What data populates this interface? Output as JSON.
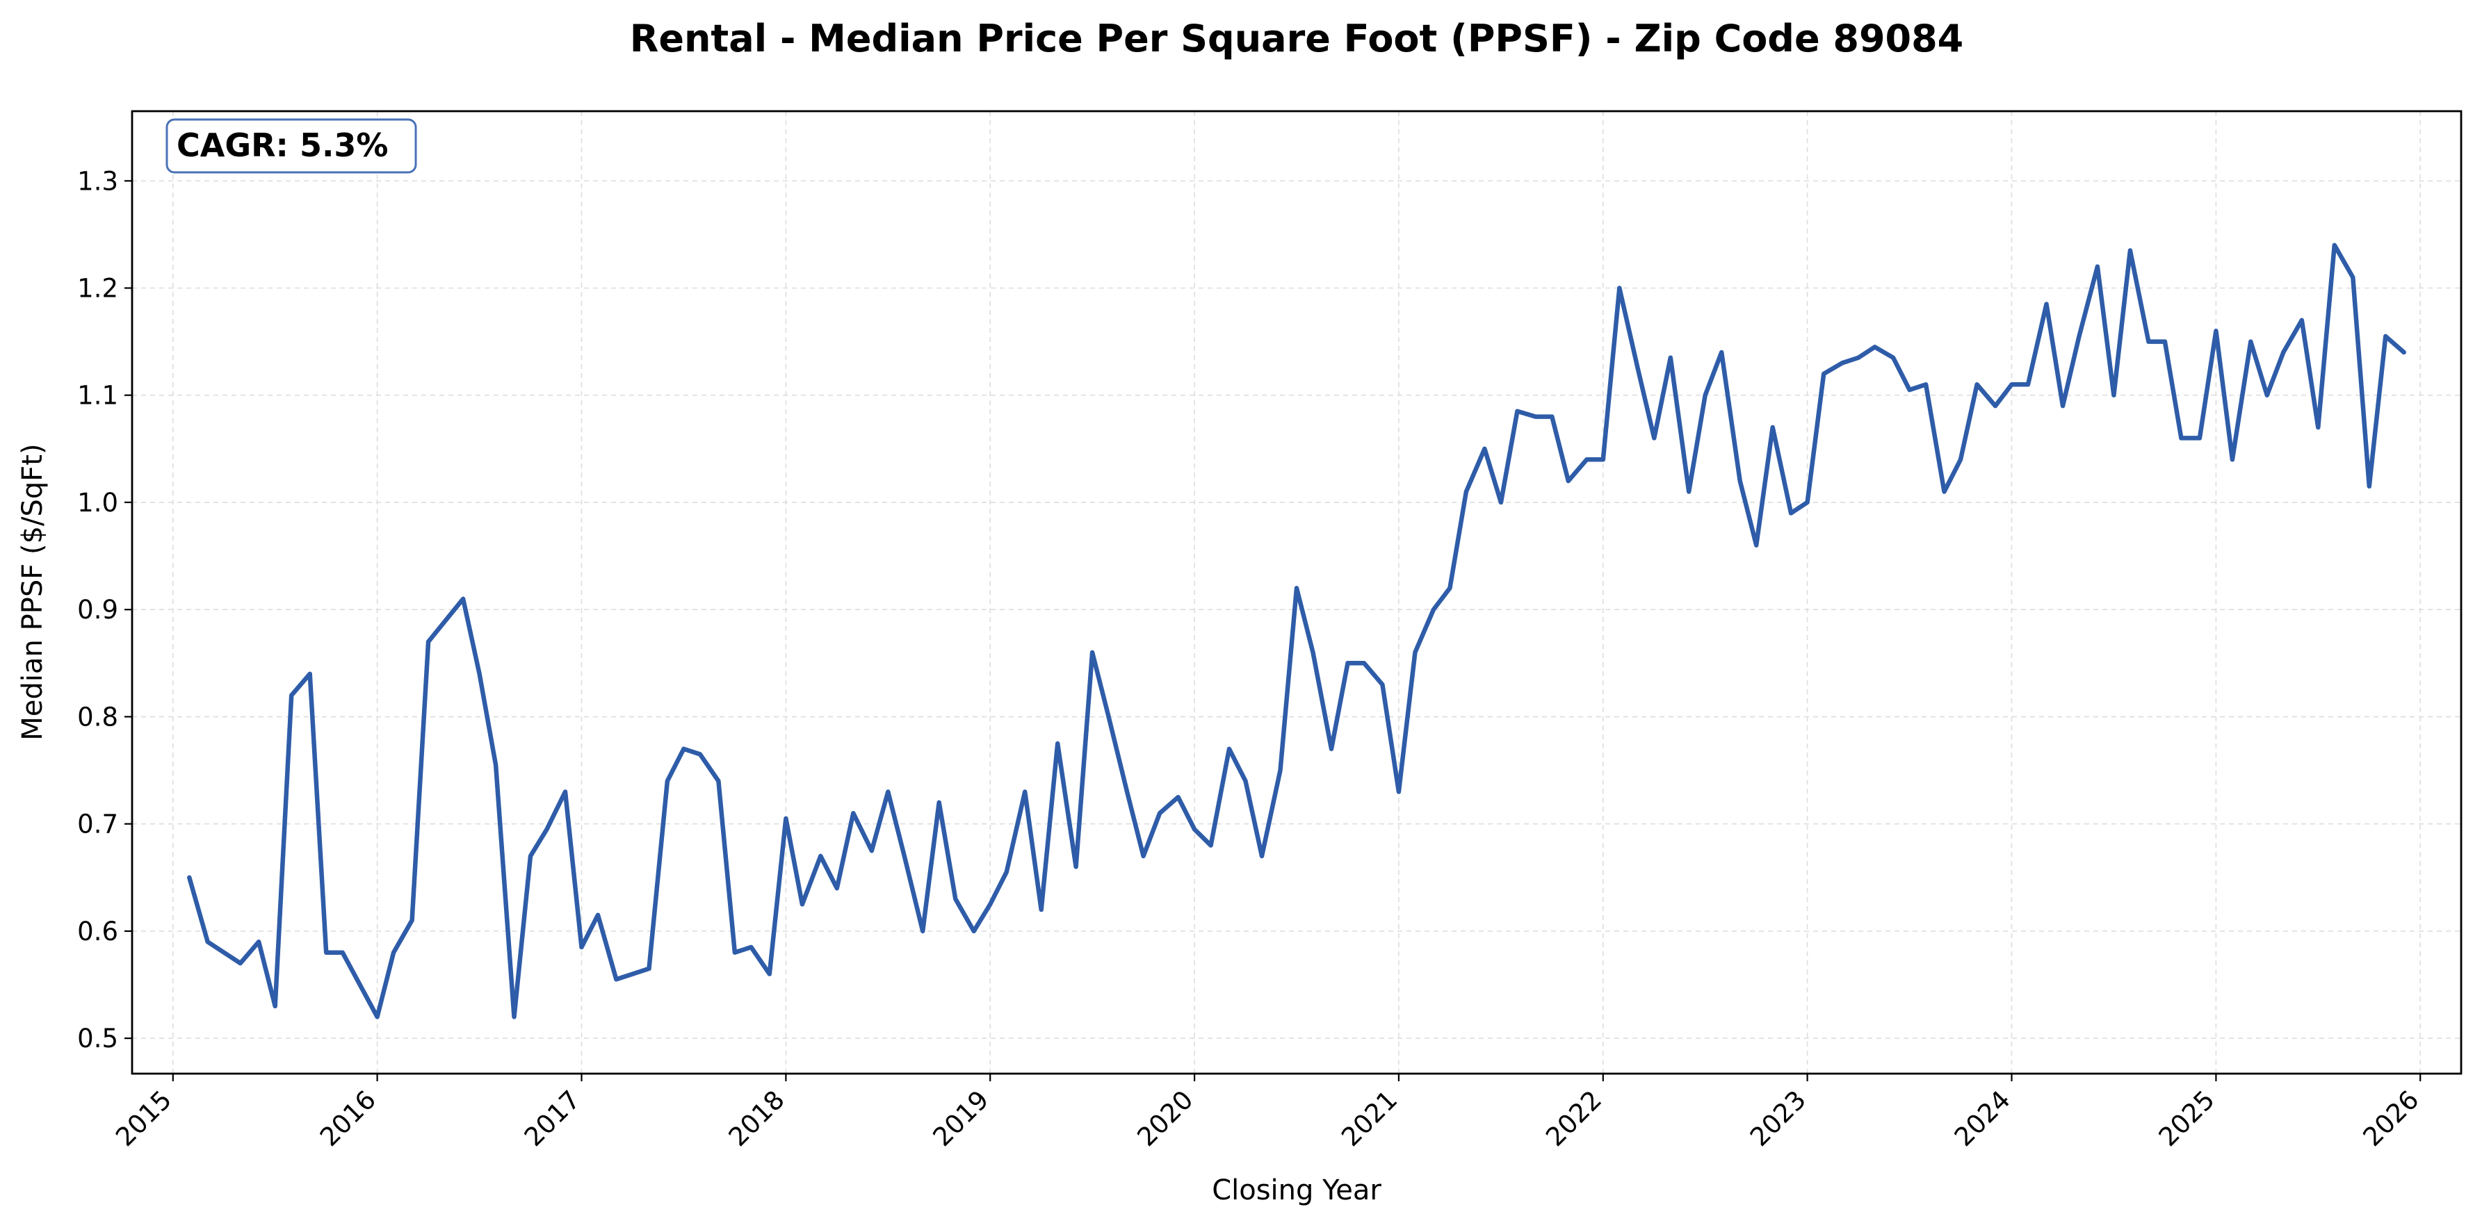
{
  "chart_data": {
    "type": "line",
    "title": "Rental - Median Price Per Square Foot (PPSF) - Zip Code 89084",
    "xlabel": "Closing Year",
    "ylabel": "Median PPSF ($/SqFt)",
    "annotation": "CAGR: 5.3%",
    "xlim": [
      2014.8,
      2026.2
    ],
    "ylim": [
      0.467,
      1.365
    ],
    "x_ticks": [
      2015,
      2016,
      2017,
      2018,
      2019,
      2020,
      2021,
      2022,
      2023,
      2024,
      2025,
      2026
    ],
    "x_tick_labels": [
      "2015",
      "2016",
      "2017",
      "2018",
      "2019",
      "2020",
      "2021",
      "2022",
      "2023",
      "2024",
      "2025",
      "2026"
    ],
    "y_ticks": [
      0.5,
      0.6,
      0.7,
      0.8,
      0.9,
      1.0,
      1.1,
      1.2,
      1.3
    ],
    "y_tick_labels": [
      "0.5",
      "0.6",
      "0.7",
      "0.8",
      "0.9",
      "1.0",
      "1.1",
      "1.2",
      "1.3"
    ],
    "grid": true,
    "series": [
      {
        "name": "Median PPSF",
        "color": "#2e5ca8",
        "x": [
          2015.08,
          2015.17,
          2015.33,
          2015.42,
          2015.5,
          2015.58,
          2015.67,
          2015.75,
          2015.83,
          2016.0,
          2016.08,
          2016.17,
          2016.25,
          2016.42,
          2016.5,
          2016.58,
          2016.67,
          2016.75,
          2016.83,
          2016.92,
          2017.0,
          2017.08,
          2017.17,
          2017.33,
          2017.42,
          2017.5,
          2017.58,
          2017.67,
          2017.75,
          2017.83,
          2017.92,
          2018.0,
          2018.08,
          2018.17,
          2018.25,
          2018.33,
          2018.42,
          2018.5,
          2018.58,
          2018.67,
          2018.75,
          2018.83,
          2018.92,
          2019.0,
          2019.08,
          2019.17,
          2019.25,
          2019.33,
          2019.42,
          2019.5,
          2019.58,
          2019.67,
          2019.75,
          2019.83,
          2019.92,
          2020.0,
          2020.08,
          2020.17,
          2020.25,
          2020.33,
          2020.42,
          2020.5,
          2020.58,
          2020.67,
          2020.75,
          2020.83,
          2020.92,
          2021.0,
          2021.08,
          2021.17,
          2021.25,
          2021.33,
          2021.42,
          2021.5,
          2021.58,
          2021.67,
          2021.75,
          2021.83,
          2021.92,
          2022.0,
          2022.08,
          2022.17,
          2022.25,
          2022.33,
          2022.42,
          2022.5,
          2022.58,
          2022.67,
          2022.75,
          2022.83,
          2022.92,
          2023.0,
          2023.08,
          2023.17,
          2023.25,
          2023.33,
          2023.42,
          2023.5,
          2023.58,
          2023.67,
          2023.75,
          2023.83,
          2023.92,
          2024.0,
          2024.08,
          2024.17,
          2024.25,
          2024.33,
          2024.42,
          2024.5,
          2024.58,
          2024.67,
          2024.75,
          2024.83,
          2024.92,
          2025.0,
          2025.08,
          2025.17,
          2025.25,
          2025.33,
          2025.42,
          2025.5,
          2025.58,
          2025.67,
          2025.75,
          2025.83,
          2025.92
        ],
        "y": [
          0.65,
          0.59,
          0.57,
          0.59,
          0.53,
          0.82,
          0.84,
          0.58,
          0.58,
          0.52,
          0.58,
          0.61,
          0.87,
          0.91,
          0.84,
          0.755,
          0.52,
          0.67,
          0.695,
          0.73,
          0.585,
          0.615,
          0.555,
          0.565,
          0.74,
          0.77,
          0.765,
          0.74,
          0.58,
          0.585,
          0.56,
          0.705,
          0.625,
          0.67,
          0.64,
          0.71,
          0.675,
          0.73,
          0.67,
          0.6,
          0.72,
          0.63,
          0.6,
          0.625,
          0.655,
          0.73,
          0.62,
          0.775,
          0.66,
          0.86,
          0.8,
          0.73,
          0.67,
          0.71,
          0.725,
          0.695,
          0.68,
          0.77,
          0.74,
          0.67,
          0.75,
          0.92,
          0.86,
          0.77,
          0.85,
          0.85,
          0.83,
          0.73,
          0.86,
          0.9,
          0.92,
          1.01,
          1.05,
          1.0,
          1.085,
          1.08,
          1.08,
          1.02,
          1.04,
          1.04,
          1.2,
          1.125,
          1.06,
          1.135,
          1.01,
          1.1,
          1.14,
          1.02,
          0.96,
          1.07,
          0.99,
          1.0,
          1.12,
          1.13,
          1.135,
          1.145,
          1.135,
          1.105,
          1.11,
          1.01,
          1.04,
          1.11,
          1.09,
          1.11,
          1.11,
          1.185,
          1.09,
          1.155,
          1.22,
          1.1,
          1.235,
          1.15,
          1.15,
          1.06,
          1.06,
          1.16,
          1.04,
          1.15,
          1.1,
          1.14,
          1.17,
          1.07,
          1.24,
          1.21,
          1.015,
          1.155,
          1.14
        ]
      }
    ]
  }
}
